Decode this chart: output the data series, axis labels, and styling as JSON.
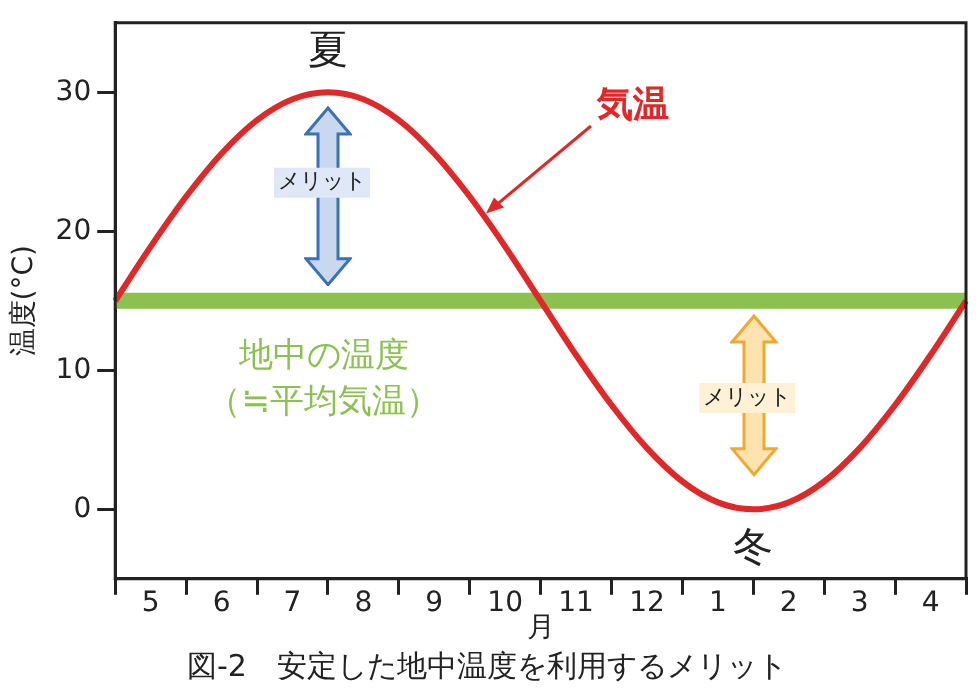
{
  "chart_data": {
    "type": "line",
    "title": "図-2　安定した地中温度を利用するメリット",
    "xlabel": "月",
    "ylabel": "温度(°C)",
    "categories": [
      null,
      "5",
      null,
      "6",
      null,
      "7",
      null,
      "8",
      null,
      "9",
      null,
      "10",
      null,
      "11",
      null,
      "12",
      null,
      "1",
      null,
      "2",
      null,
      "3",
      null,
      "4",
      null
    ],
    "series": [
      {
        "name": "気温",
        "color": "#e02828",
        "values": [
          15,
          18.9,
          22.5,
          25.6,
          28,
          29.5,
          30,
          29.5,
          28,
          25.6,
          22.5,
          18.9,
          15,
          11.1,
          7.5,
          4.4,
          2,
          0.5,
          0,
          0.5,
          2,
          4.4,
          7.5,
          11.1,
          15
        ]
      }
    ],
    "ylim": [
      -5,
      35
    ],
    "yticks": [
      0,
      10,
      20,
      30
    ],
    "ref_lines": [
      {
        "axis": "y",
        "value": 15,
        "label": "地中の温度（≒平均気温）",
        "color": "#8cc152"
      }
    ],
    "annotations": [
      "夏",
      "冬",
      "メリット",
      "メリット"
    ],
    "grid": false,
    "legend": false,
    "marker": "none",
    "line_style": "solid"
  }
}
